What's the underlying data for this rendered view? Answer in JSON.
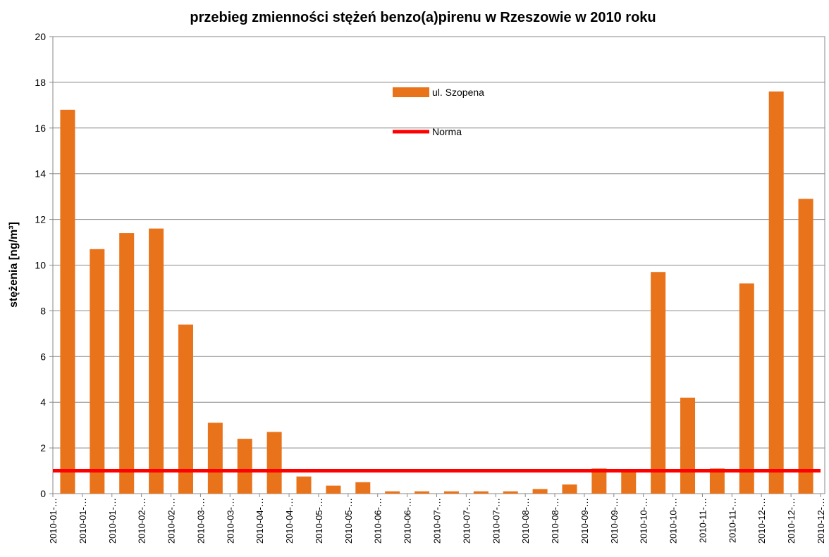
{
  "chart_data": {
    "type": "bar",
    "title": "przebieg zmienności stężeń benzo(a)pirenu w Rzeszowie w 2010 roku",
    "y_label": "stężenia [ng/m³]",
    "categories": [
      "2010-01-…",
      "2010-01-…",
      "2010-01-…",
      "2010-02-…",
      "2010-02-…",
      "2010-03-…",
      "2010-03-…",
      "2010-04-…",
      "2010-04-…",
      "2010-05-…",
      "2010-05-…",
      "2010-06-…",
      "2010-06-…",
      "2010-07-…",
      "2010-07-…",
      "2010-07-…",
      "2010-08-…",
      "2010-08-…",
      "2010-09-…",
      "2010-09-…",
      "2010-10-…",
      "2010-10-…",
      "2010-11-…",
      "2010-11-…",
      "2010-12-…",
      "2010-12-…",
      "2010-12-…"
    ],
    "series": [
      {
        "name": "ul. Szopena",
        "type": "bar",
        "color": "#e8731a",
        "values": [
          16.8,
          10.7,
          11.4,
          11.6,
          7.4,
          3.1,
          2.4,
          2.7,
          0.75,
          0.35,
          0.5,
          0.1,
          0.1,
          0.1,
          0.1,
          0.1,
          0.2,
          0.4,
          1.1,
          1.0,
          9.7,
          4.2,
          1.1,
          9.2,
          17.6,
          12.9,
          null
        ]
      },
      {
        "name": "Norma",
        "type": "line",
        "color": "#ff0000",
        "values": [
          1,
          1,
          1,
          1,
          1,
          1,
          1,
          1,
          1,
          1,
          1,
          1,
          1,
          1,
          1,
          1,
          1,
          1,
          1,
          1,
          1,
          1,
          1,
          1,
          1,
          1,
          1
        ]
      }
    ],
    "ylim": [
      0,
      20
    ],
    "yticks": [
      0,
      2,
      4,
      6,
      8,
      10,
      12,
      14,
      16,
      18,
      20
    ],
    "grid": true,
    "legend": "top"
  }
}
